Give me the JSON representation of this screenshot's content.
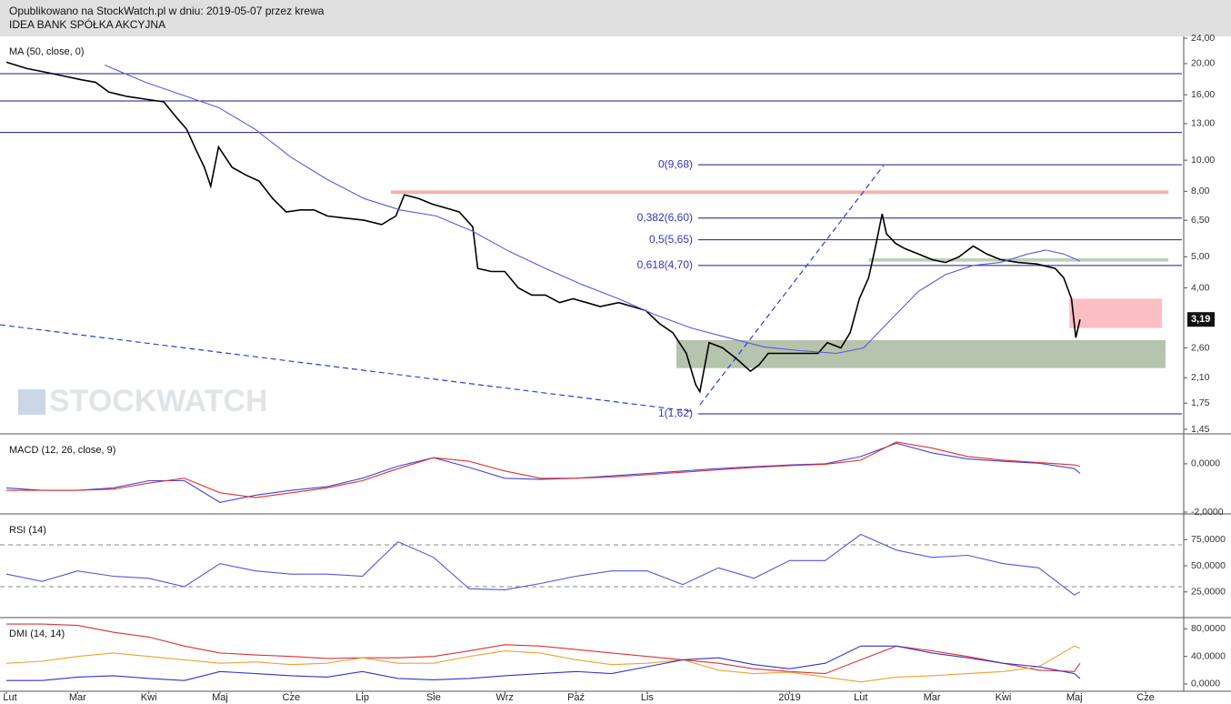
{
  "header": {
    "line1": "Opublikowano na StockWatch.pl w dniu: 2019-05-07 przez krewa",
    "line2": "IDEA BANK SPÓŁKA AKCYJNA"
  },
  "watermark": "STOCKWATCH",
  "chart_data": [
    {
      "type": "line",
      "title": "MA (50, close, 0)",
      "log": true,
      "xlim": [
        -0.09,
        16.51
      ],
      "ylim": [
        1.45,
        24
      ],
      "yticks": [
        {
          "value": 24,
          "label": "24,00"
        },
        {
          "value": 20,
          "label": "20,00"
        },
        {
          "value": 16,
          "label": "16,00"
        },
        {
          "value": 13,
          "label": "13,00"
        },
        {
          "value": 10,
          "label": "10,00"
        },
        {
          "value": 8,
          "label": "8,00"
        },
        {
          "value": 6.5,
          "label": "6,50"
        },
        {
          "value": 5,
          "label": "5,00"
        },
        {
          "value": 4,
          "label": "4,00"
        },
        {
          "value": 2.6,
          "label": "2,60"
        },
        {
          "value": 2.1,
          "label": "2,10"
        },
        {
          "value": 1.75,
          "label": "1,75"
        },
        {
          "value": 1.45,
          "label": "1,45"
        }
      ],
      "last_price": {
        "value": 3.19,
        "label": "3,19"
      },
      "hlines": [
        {
          "value": 18.6,
          "color": "#1a1a80"
        },
        {
          "value": 15.3,
          "color": "#1a1a80"
        },
        {
          "value": 12.2,
          "color": "#1a1a80"
        },
        {
          "value": 9.68,
          "label": "0(9,68)",
          "color": "#1a1a80"
        },
        {
          "value": 6.6,
          "label": "0,382(6,60)",
          "color": "#1a1a80"
        },
        {
          "value": 5.65,
          "label": "0,5(5,65)",
          "color": "#1a1a80"
        },
        {
          "value": 4.7,
          "label": "0,618(4,70)",
          "color": "#1a1a80"
        },
        {
          "value": 1.62,
          "label": "1(1,62)",
          "color": "#1a1a80"
        }
      ],
      "zones": [
        {
          "from": 5.4,
          "to": 16.32,
          "low": 7.85,
          "high": 8.05,
          "color": "#f4a3a3"
        },
        {
          "from": 14.93,
          "to": 16.23,
          "low": 3.0,
          "high": 3.7,
          "color": "#f9b3b8"
        },
        {
          "from": 9.41,
          "to": 16.28,
          "low": 2.25,
          "high": 2.75,
          "color": "#a9b99f"
        },
        {
          "from": 12.11,
          "to": 16.32,
          "low": 4.83,
          "high": 4.95,
          "color": "#b4c8ab"
        }
      ],
      "trendlines": [
        {
          "x": [
            -0.09,
            9.62
          ],
          "y": [
            3.07,
            1.65
          ],
          "color": "#2a3fd0"
        },
        {
          "x": [
            9.74,
            12.32
          ],
          "y": [
            1.73,
            9.63
          ],
          "color": "#2a3fd0"
        }
      ],
      "series": [
        {
          "color": "#000000",
          "x": [
            0,
            0.29,
            0.55,
            0.8,
            1.06,
            1.25,
            1.44,
            1.7,
            1.95,
            2.21,
            2.4,
            2.53,
            2.66,
            2.78,
            2.87,
            2.98,
            3.17,
            3.36,
            3.55,
            3.74,
            3.93,
            4.13,
            4.32,
            4.51,
            4.76,
            5.02,
            5.27,
            5.47,
            5.59,
            5.79,
            5.98,
            6.17,
            6.36,
            6.55,
            6.62,
            6.81,
            7.0,
            7.19,
            7.38,
            7.57,
            7.77,
            7.96,
            8.15,
            8.34,
            8.6,
            8.79,
            8.98,
            9.17,
            9.36,
            9.55,
            9.68,
            9.74,
            9.87,
            10.06,
            10.26,
            10.45,
            10.57,
            10.7,
            10.89,
            11.15,
            11.4,
            11.53,
            11.72,
            11.85,
            11.98,
            12.11,
            12.2,
            12.3,
            12.36,
            12.49,
            12.62,
            12.81,
            13.0,
            13.19,
            13.38,
            13.58,
            13.77,
            13.96,
            14.21,
            14.47,
            14.73,
            14.85,
            14.96,
            15.02,
            15.08
          ],
          "values": [
            20.2,
            19.3,
            18.8,
            18.3,
            17.8,
            17.5,
            16.3,
            15.8,
            15.5,
            15.2,
            13.5,
            12.5,
            10.8,
            9.5,
            8.3,
            11.0,
            9.5,
            9.0,
            8.6,
            7.6,
            6.9,
            7.0,
            7.0,
            6.7,
            6.6,
            6.5,
            6.3,
            6.7,
            7.8,
            7.6,
            7.3,
            7.1,
            6.9,
            6.2,
            4.6,
            4.5,
            4.5,
            4.0,
            3.8,
            3.8,
            3.6,
            3.7,
            3.6,
            3.5,
            3.6,
            3.5,
            3.4,
            3.1,
            2.9,
            2.5,
            2.0,
            1.9,
            2.7,
            2.6,
            2.4,
            2.2,
            2.3,
            2.5,
            2.5,
            2.5,
            2.5,
            2.7,
            2.6,
            2.9,
            3.7,
            4.3,
            5.3,
            6.8,
            5.9,
            5.5,
            5.3,
            5.1,
            4.9,
            4.8,
            5.0,
            5.4,
            5.1,
            4.9,
            4.8,
            4.75,
            4.6,
            4.3,
            3.7,
            2.8,
            3.19
          ]
        },
        {
          "color": "#5a5ae0",
          "x": [
            1.38,
            1.95,
            2.46,
            2.98,
            3.49,
            4.0,
            4.51,
            5.02,
            5.53,
            6.04,
            6.55,
            7.06,
            7.57,
            8.08,
            8.6,
            9.11,
            9.62,
            10.13,
            10.64,
            11.15,
            11.66,
            12.04,
            12.43,
            12.81,
            13.19,
            13.58,
            13.96,
            14.34,
            14.6,
            14.85,
            15.08
          ],
          "values": [
            19.8,
            17.5,
            16.0,
            14.6,
            12.5,
            10.2,
            8.7,
            7.6,
            7.0,
            6.7,
            6.0,
            5.2,
            4.6,
            4.1,
            3.7,
            3.3,
            3.0,
            2.8,
            2.62,
            2.55,
            2.5,
            2.6,
            3.2,
            3.9,
            4.4,
            4.7,
            4.8,
            5.1,
            5.25,
            5.1,
            4.85
          ]
        }
      ]
    },
    {
      "type": "line",
      "title": "MACD (12, 26, close, 9)",
      "xlim": [
        -0.09,
        16.51
      ],
      "ylim": [
        -2,
        1.2
      ],
      "yticks": [
        {
          "value": 0,
          "label": "0,0000"
        },
        {
          "value": -2,
          "label": "-2,0000"
        }
      ],
      "series": [
        {
          "color": "#4444dd",
          "x": [
            0,
            0.5,
            1,
            1.5,
            2,
            2.5,
            3,
            3.5,
            4,
            4.5,
            5,
            5.5,
            6,
            6.5,
            7,
            7.5,
            8,
            8.5,
            9,
            9.5,
            10,
            10.5,
            11,
            11.5,
            12,
            12.5,
            13,
            13.5,
            14,
            14.5,
            15,
            15.08
          ],
          "values": [
            -1.0,
            -1.1,
            -1.1,
            -1.0,
            -0.7,
            -0.7,
            -1.6,
            -1.3,
            -1.1,
            -0.95,
            -0.6,
            -0.1,
            0.25,
            -0.15,
            -0.6,
            -0.65,
            -0.6,
            -0.5,
            -0.4,
            -0.3,
            -0.2,
            -0.12,
            -0.05,
            0.0,
            0.3,
            0.85,
            0.45,
            0.2,
            0.1,
            0.02,
            -0.2,
            -0.4
          ]
        },
        {
          "color": "#e03030",
          "x": [
            0,
            0.5,
            1,
            1.5,
            2,
            2.5,
            3,
            3.5,
            4,
            4.5,
            5,
            5.5,
            6,
            6.5,
            7,
            7.5,
            8,
            8.5,
            9,
            9.5,
            10,
            10.5,
            11,
            11.5,
            12,
            12.5,
            13,
            13.5,
            14,
            14.5,
            15,
            15.08
          ],
          "values": [
            -1.1,
            -1.1,
            -1.1,
            -1.05,
            -0.8,
            -0.6,
            -1.2,
            -1.4,
            -1.2,
            -1.0,
            -0.7,
            -0.2,
            0.25,
            0.1,
            -0.3,
            -0.6,
            -0.6,
            -0.55,
            -0.45,
            -0.35,
            -0.25,
            -0.15,
            -0.08,
            -0.02,
            0.15,
            0.9,
            0.65,
            0.3,
            0.15,
            0.05,
            -0.05,
            -0.1
          ]
        }
      ]
    },
    {
      "type": "line",
      "title": "RSI (14)",
      "xlim": [
        -0.09,
        16.51
      ],
      "ylim": [
        1.3,
        98.7
      ],
      "yticks": [
        {
          "value": 75,
          "label": "75,0000"
        },
        {
          "value": 50,
          "label": "50,0000"
        },
        {
          "value": 25,
          "label": "25,0000"
        }
      ],
      "levels": [
        70,
        30
      ],
      "series": [
        {
          "color": "#5555dd",
          "x": [
            0,
            0.5,
            1,
            1.5,
            2,
            2.5,
            3,
            3.5,
            4,
            4.5,
            5,
            5.5,
            6,
            6.5,
            7,
            7.5,
            8,
            8.5,
            9,
            9.5,
            10,
            10.5,
            11,
            11.5,
            12,
            12.5,
            13,
            13.5,
            14,
            14.5,
            15,
            15.08
          ],
          "values": [
            42,
            35,
            45,
            40,
            38,
            30,
            52,
            45,
            42,
            42,
            40,
            73,
            58,
            28,
            27,
            33,
            40,
            45,
            45,
            32,
            48,
            38,
            55,
            55,
            80,
            65,
            58,
            60,
            52,
            48,
            22,
            25
          ]
        }
      ]
    },
    {
      "type": "line",
      "title": "DMI (14, 14)",
      "xlim": [
        -0.09,
        16.51
      ],
      "ylim": [
        -8,
        95
      ],
      "yticks": [
        {
          "value": 80,
          "label": "80,0000"
        },
        {
          "value": 40,
          "label": "40,0000"
        },
        {
          "value": 0,
          "label": "0,0000"
        }
      ],
      "xticks": [
        {
          "value": 0,
          "label": "Lut"
        },
        {
          "value": 1,
          "label": "Mar"
        },
        {
          "value": 2,
          "label": "Kwi"
        },
        {
          "value": 3,
          "label": "Maj"
        },
        {
          "value": 4,
          "label": "Cze"
        },
        {
          "value": 5,
          "label": "Lip"
        },
        {
          "value": 6,
          "label": "Sie"
        },
        {
          "value": 7,
          "label": "Wrz"
        },
        {
          "value": 8,
          "label": "Paź"
        },
        {
          "value": 9,
          "label": "Lis"
        },
        {
          "value": 11,
          "label": "2019"
        },
        {
          "value": 12,
          "label": "Lut"
        },
        {
          "value": 13,
          "label": "Mar"
        },
        {
          "value": 14,
          "label": "Kwi"
        },
        {
          "value": 15,
          "label": "Maj"
        },
        {
          "value": 16,
          "label": "Cze"
        }
      ],
      "series": [
        {
          "color": "#e03030",
          "x": [
            0,
            0.5,
            1,
            1.5,
            2,
            2.5,
            3,
            3.5,
            4,
            4.5,
            5,
            5.5,
            6,
            6.5,
            7,
            7.5,
            8,
            8.5,
            9,
            9.5,
            10,
            10.5,
            11,
            11.5,
            12,
            12.5,
            13,
            13.5,
            14,
            14.5,
            15,
            15.08
          ],
          "values": [
            87,
            87,
            85,
            75,
            68,
            55,
            45,
            42,
            40,
            37,
            38,
            38,
            40,
            48,
            57,
            55,
            50,
            45,
            40,
            35,
            30,
            22,
            18,
            15,
            35,
            55,
            48,
            40,
            30,
            20,
            18,
            30
          ]
        },
        {
          "color": "#f0a030",
          "x": [
            0,
            0.5,
            1,
            1.5,
            2,
            2.5,
            3,
            3.5,
            4,
            4.5,
            5,
            5.5,
            6,
            6.5,
            7,
            7.5,
            8,
            8.5,
            9,
            9.5,
            10,
            10.5,
            11,
            11.5,
            12,
            12.5,
            13,
            13.5,
            14,
            14.5,
            15,
            15.08
          ],
          "values": [
            30,
            33,
            40,
            45,
            40,
            35,
            30,
            32,
            28,
            30,
            38,
            30,
            30,
            40,
            48,
            45,
            35,
            28,
            30,
            35,
            20,
            15,
            17,
            10,
            3,
            10,
            12,
            15,
            18,
            25,
            55,
            52
          ]
        },
        {
          "color": "#3333cc",
          "x": [
            0,
            0.5,
            1,
            1.5,
            2,
            2.5,
            3,
            3.5,
            4,
            4.5,
            5,
            5.5,
            6,
            6.5,
            7,
            7.5,
            8,
            8.5,
            9,
            9.5,
            10,
            10.5,
            11,
            11.5,
            12,
            12.5,
            13,
            13.5,
            14,
            14.5,
            15,
            15.08
          ],
          "values": [
            5,
            5,
            10,
            12,
            8,
            5,
            18,
            15,
            12,
            10,
            18,
            8,
            6,
            8,
            12,
            15,
            18,
            15,
            25,
            35,
            38,
            28,
            22,
            30,
            55,
            55,
            45,
            38,
            30,
            25,
            15,
            8
          ]
        }
      ]
    }
  ]
}
